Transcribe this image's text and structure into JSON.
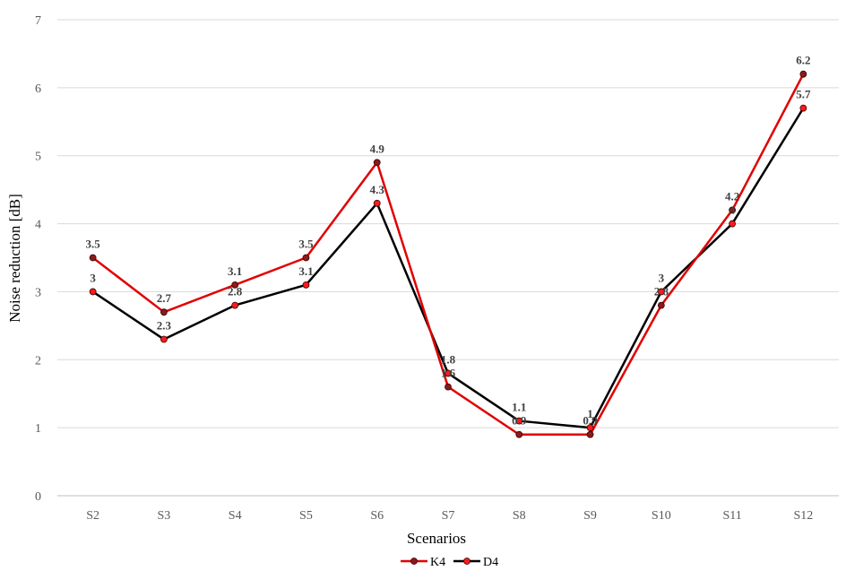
{
  "chart_data": {
    "type": "line",
    "title": "",
    "xlabel": "Scenarios",
    "ylabel": "Noise reduction [dB]",
    "ylim": [
      0,
      7
    ],
    "yticks": [
      "0",
      "1",
      "2",
      "3",
      "4",
      "5",
      "6",
      "7"
    ],
    "grid": "horizontal",
    "legend_position": "bottom",
    "categories": [
      "S2",
      "S3",
      "S4",
      "S5",
      "S6",
      "S7",
      "S8",
      "S9",
      "S10",
      "S11",
      "S12"
    ],
    "series": [
      {
        "name": "K4",
        "line_color": "#e10000",
        "marker_color": "#8b1a1a",
        "values": [
          3.5,
          2.7,
          3.1,
          3.5,
          4.9,
          1.6,
          0.9,
          0.9,
          2.8,
          4.2,
          6.2
        ],
        "labels": [
          "3.5",
          "2.7",
          "3.1",
          "3.5",
          "4.9",
          "1.6",
          "0.9",
          "0.9",
          "2.8",
          "4.2",
          "6.2"
        ]
      },
      {
        "name": "D4",
        "line_color": "#000000",
        "marker_color": "#ff1a1a",
        "values": [
          3.0,
          2.3,
          2.8,
          3.1,
          4.3,
          1.8,
          1.1,
          1.0,
          3.0,
          4.0,
          5.7
        ],
        "labels": [
          "3",
          "2.3",
          "2.8",
          "3.1",
          "4.3",
          "1.8",
          "1.1",
          "1",
          "3",
          "4",
          "5.7"
        ]
      }
    ]
  }
}
